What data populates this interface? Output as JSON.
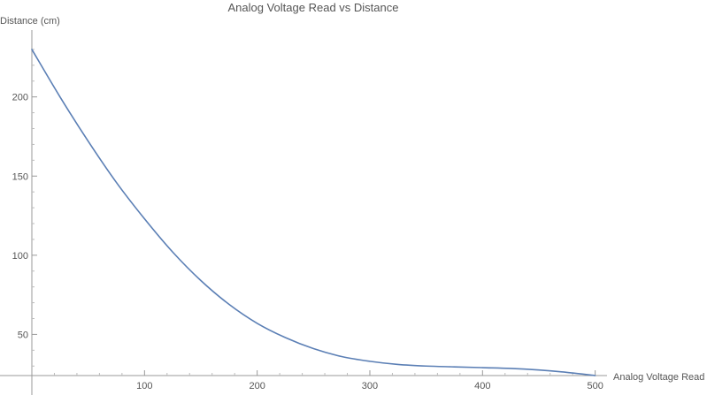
{
  "chart_data": {
    "type": "line",
    "title": "Analog Voltage Read vs Distance",
    "xlabel": "Analog Voltage Read",
    "ylabel": "Distance (cm)",
    "xlim": [
      0,
      505
    ],
    "ylim": [
      24,
      240
    ],
    "x_ticks": [
      100,
      200,
      300,
      400,
      500
    ],
    "y_ticks": [
      50,
      100,
      150,
      200
    ],
    "grid": false,
    "series": [
      {
        "color": "#5b7fb5",
        "x": [
          0,
          25,
          50,
          75,
          100,
          125,
          150,
          175,
          200,
          225,
          250,
          275,
          300,
          325,
          350,
          375,
          400,
          425,
          450,
          475,
          500
        ],
        "y": [
          230,
          200,
          172,
          146,
          123,
          102,
          84,
          69,
          57,
          48,
          41,
          36,
          33,
          31,
          30,
          29.5,
          29,
          28.5,
          27.5,
          26,
          24
        ]
      }
    ]
  }
}
